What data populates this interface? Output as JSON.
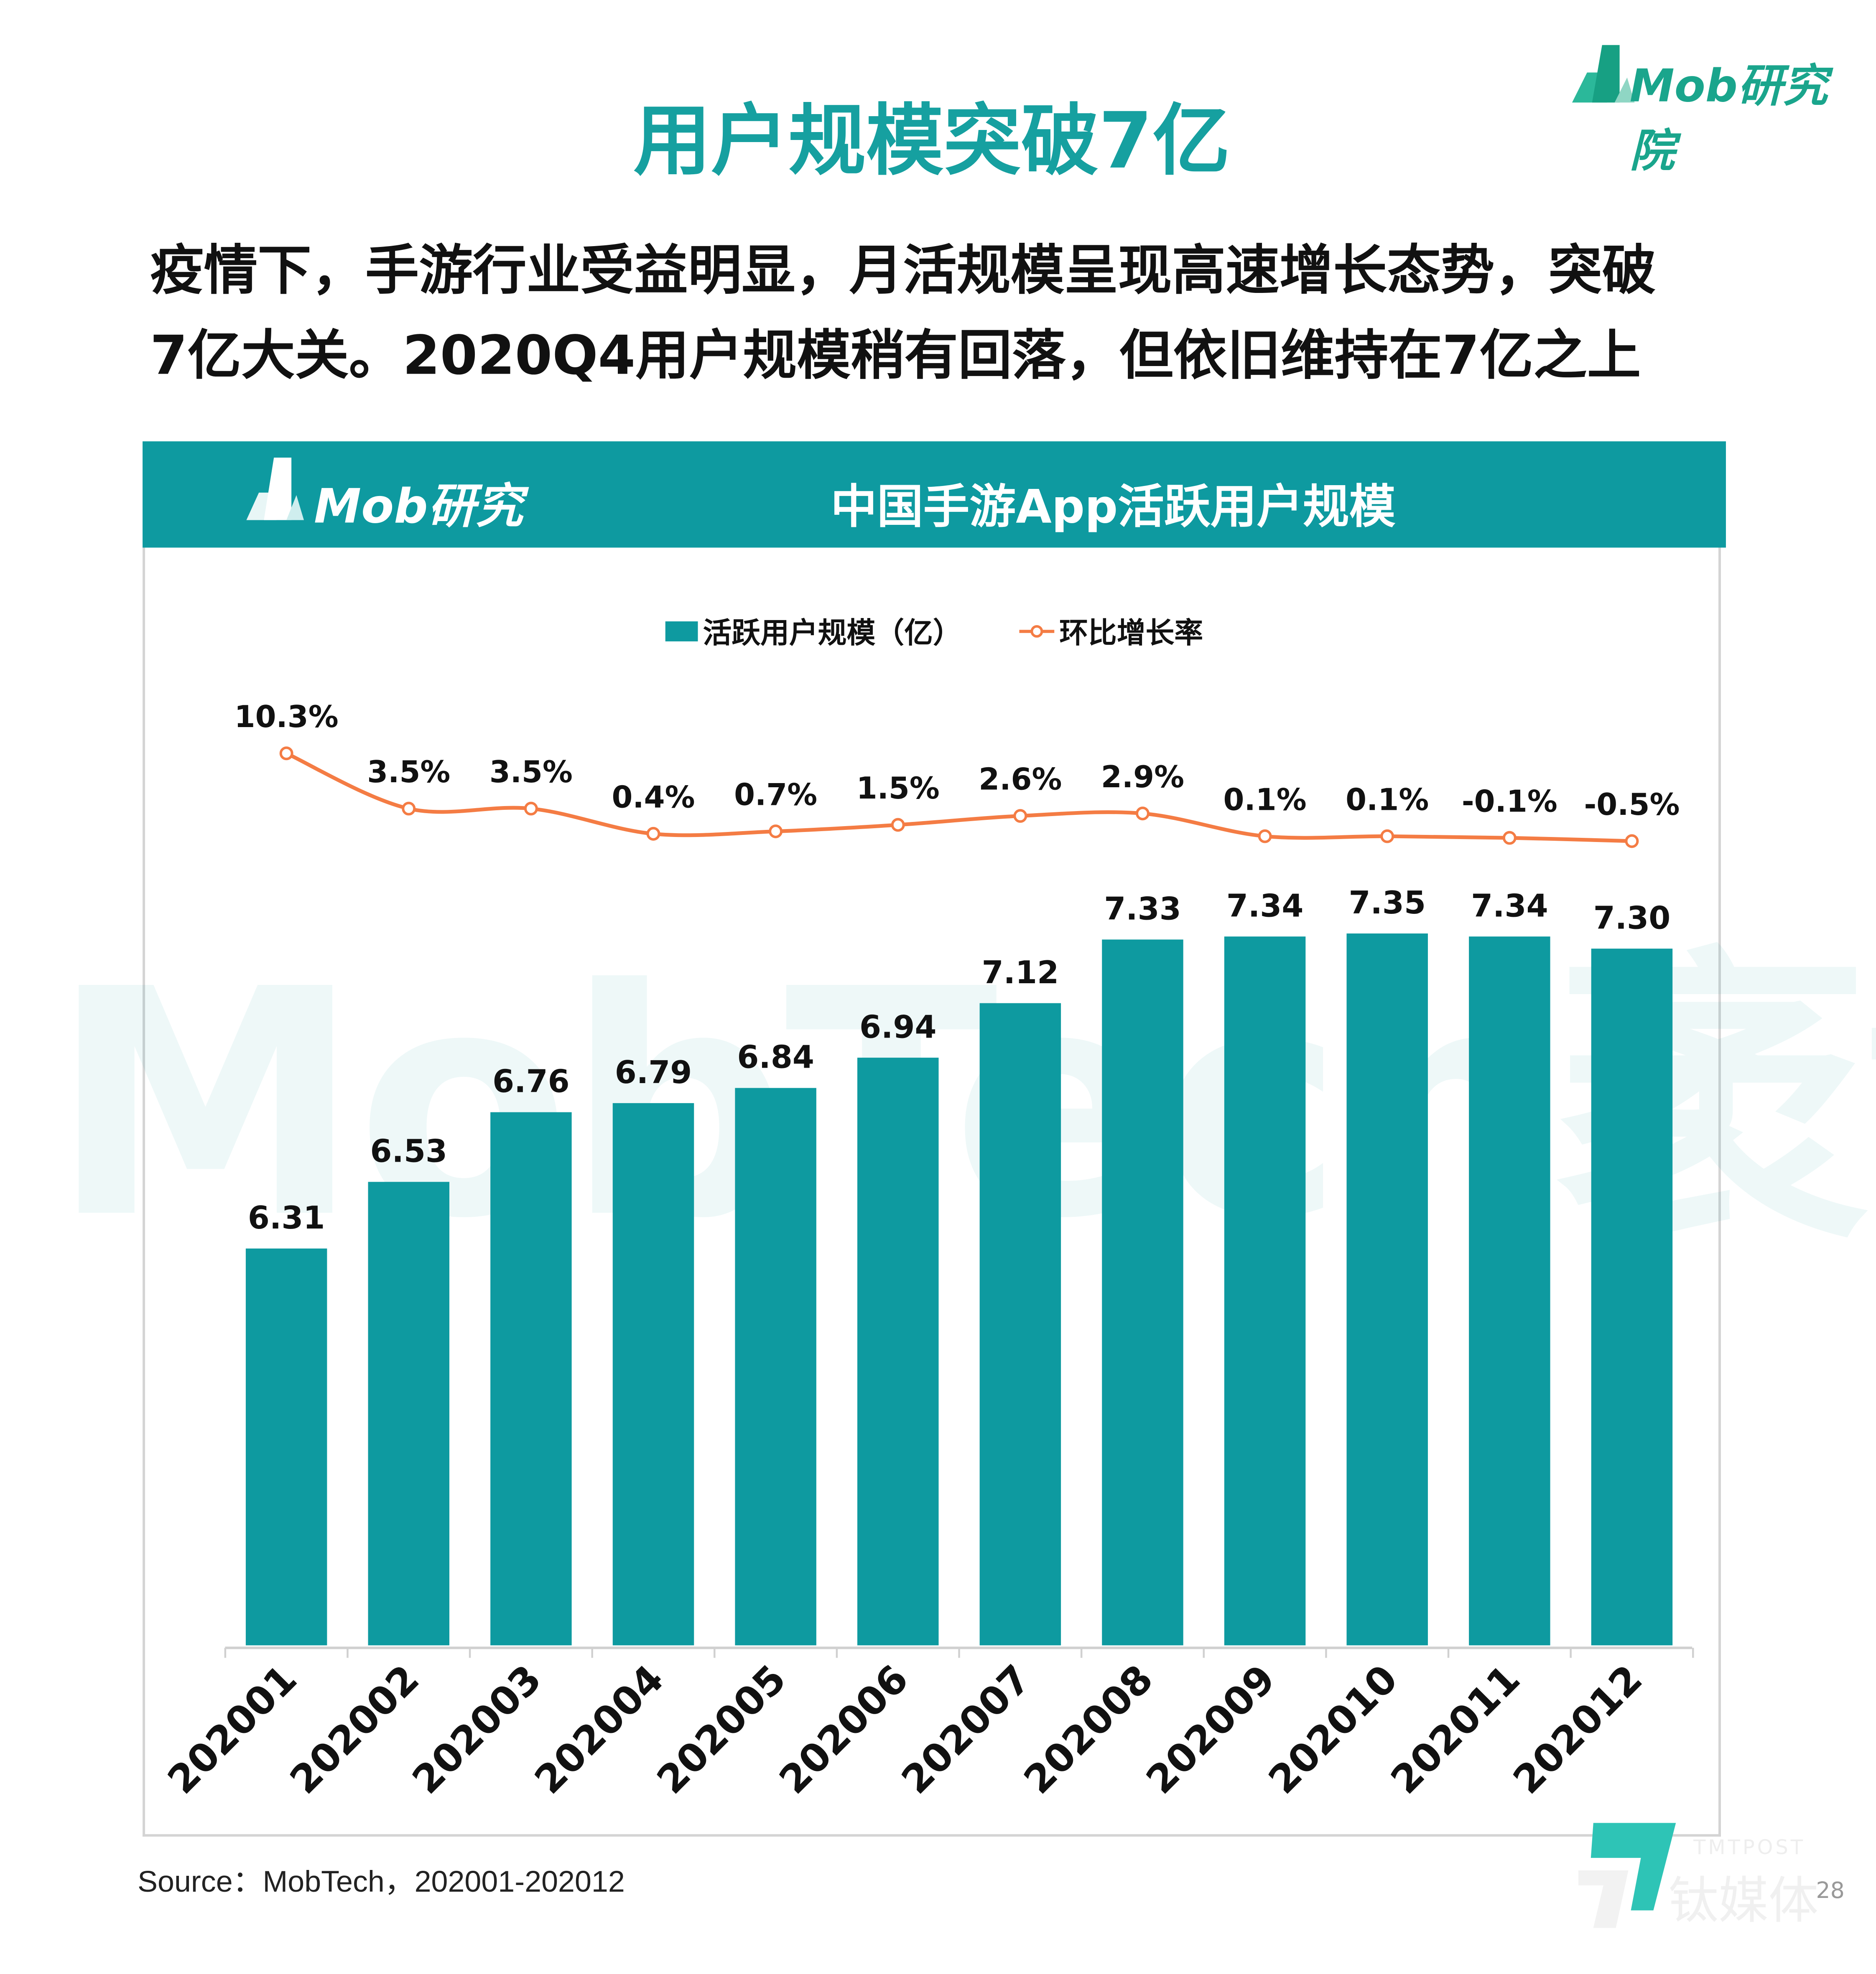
{
  "header": {
    "title": "用户规模突破7亿",
    "brand": "Mob研究院"
  },
  "subtitle": {
    "line1": "疫情下，手游行业受益明显，月活规模呈现高速增长态势，突破",
    "line2": "7亿大关。2020Q4用户规模稍有回落，但依旧维持在7亿之上"
  },
  "panel": {
    "brand": "Mob研究院",
    "watermark": "MobTech袤博"
  },
  "colors": {
    "bar": "#0e9aa0",
    "line": "#f47c44",
    "title": "#16a0a0",
    "band": "#0e9aa0"
  },
  "chart_data": {
    "type": "bar+line",
    "title": "中国手游App活跃用户规模",
    "categories": [
      "202001",
      "202002",
      "202003",
      "202004",
      "202005",
      "202006",
      "202007",
      "202008",
      "202009",
      "202010",
      "202011",
      "202012"
    ],
    "series": [
      {
        "name": "活跃用户规模（亿）",
        "type": "bar",
        "values": [
          6.31,
          6.53,
          6.76,
          6.79,
          6.84,
          6.94,
          7.12,
          7.33,
          7.34,
          7.35,
          7.34,
          7.3
        ],
        "labels": [
          "6.31",
          "6.53",
          "6.76",
          "6.79",
          "6.84",
          "6.94",
          "7.12",
          "7.33",
          "7.34",
          "7.35",
          "7.34",
          "7.30"
        ]
      },
      {
        "name": "环比增长率",
        "type": "line",
        "values": [
          10.3,
          3.5,
          3.5,
          0.4,
          0.7,
          1.5,
          2.6,
          2.9,
          0.1,
          0.1,
          -0.1,
          -0.5
        ],
        "labels": [
          "10.3%",
          "3.5%",
          "3.5%",
          "0.4%",
          "0.7%",
          "1.5%",
          "2.6%",
          "2.9%",
          "0.1%",
          "0.1%",
          "-0.1%",
          "-0.5%"
        ]
      }
    ],
    "legend_placement": "top",
    "grid": false,
    "ylim_bar": [
      5,
      8.5
    ]
  },
  "footer": {
    "source": "Source：MobTech，202001-202012",
    "watermark_brand": "TMTPOST 钛媒体",
    "page": "28"
  }
}
